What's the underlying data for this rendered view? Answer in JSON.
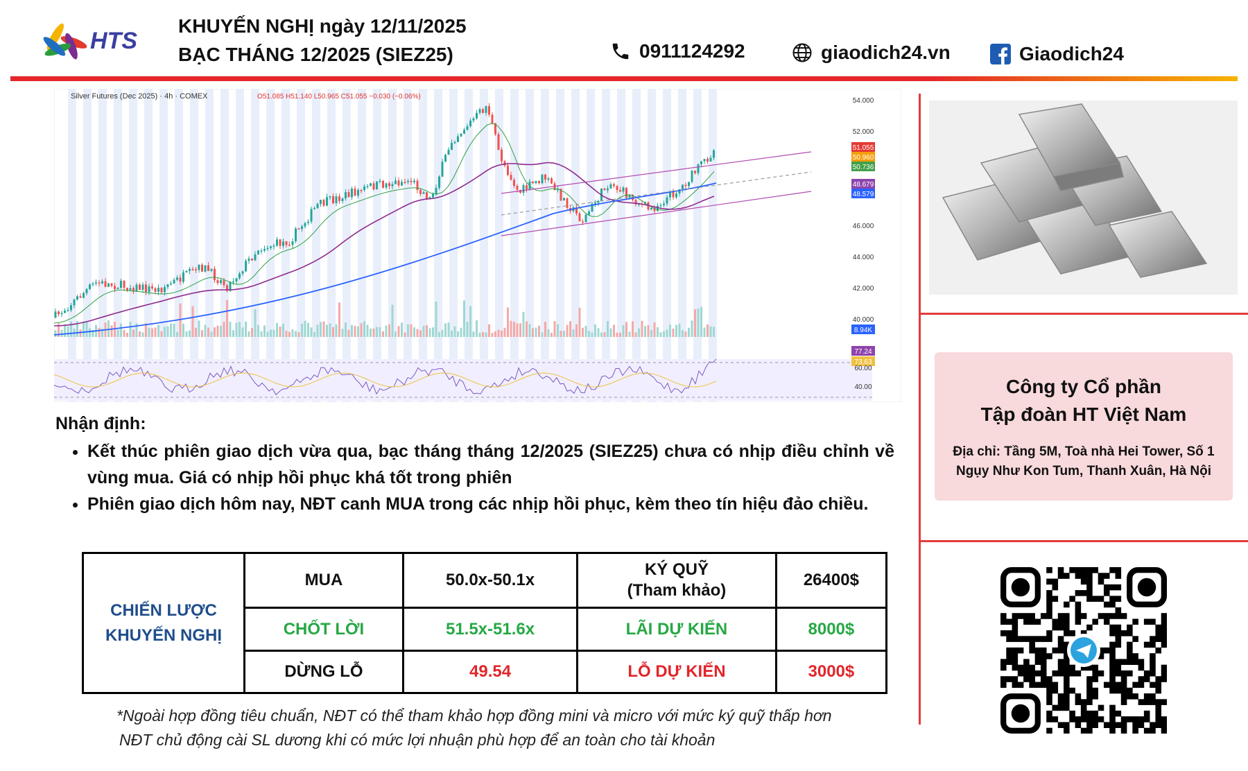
{
  "header": {
    "logo": "HTS",
    "title_line1": "KHUYẾN NGHỊ ngày 12/11/2025",
    "title_line2": "BẠC THÁNG 12/2025 (SIEZ25)",
    "phone": "0911124292",
    "website": "giaodich24.vn",
    "facebook": "Giaodich24"
  },
  "chart_image": {
    "legend": "Silver Futures (Dec 2025) · 4h · COMEX",
    "ohlc": "O51.085 H51.140 L50.965 C51.055 −0.030 (−0.06%)",
    "axis_labels": [
      "54.000",
      "52.000",
      "51.055",
      "50.960",
      "50.736",
      "48.679",
      "48.579",
      "46.000",
      "44.000",
      "42.000",
      "40.000",
      "8.94K",
      "77.24",
      "73.63",
      "60.00",
      "40.00"
    ]
  },
  "analysis": {
    "heading": "Nhận định:",
    "bullets": [
      "Kết thúc phiên giao dịch vừa qua, bạc tháng tháng 12/2025 (SIEZ25) chưa có nhịp điều chỉnh về vùng mua. Giá có nhịp hồi phục khá tốt trong phiên",
      "Phiên giao dịch hôm nay, NĐT canh MUA trong các nhịp hồi phục, kèm theo tín hiệu đảo chiều."
    ]
  },
  "table": {
    "label": [
      "CHIẾN LƯỢC",
      "KHUYẾN NGHỊ"
    ],
    "rows": [
      [
        "MUA",
        "50.0x-50.1x",
        [
          "KÝ QUỸ",
          "(Tham khảo)"
        ],
        "26400$"
      ],
      [
        "CHỐT LỜI",
        "51.5x-51.6x",
        [
          "LÃI DỰ KIẾN"
        ],
        "8000$"
      ],
      [
        "DỪNG LỖ",
        "49.54",
        [
          "LỖ DỰ KIẾN"
        ],
        "3000$"
      ]
    ]
  },
  "notes": [
    "*Ngoài hợp đồng tiêu chuẩn, NĐT có thể tham khảo hợp đồng mini và micro với mức ký quỹ thấp hơn",
    "NĐT chủ động cài SL dương khi có mức lợi nhuận phù hợp để an toàn cho tài khoản"
  ],
  "company": {
    "name": [
      "Công ty Cổ phần",
      "Tập đoàn HT Việt Nam"
    ],
    "address": "Địa chỉ: Tầng 5M, Toà nhà Hei Tower, Số 1 Ngụy Như Kon Tum, Thanh Xuân, Hà Nội"
  }
}
